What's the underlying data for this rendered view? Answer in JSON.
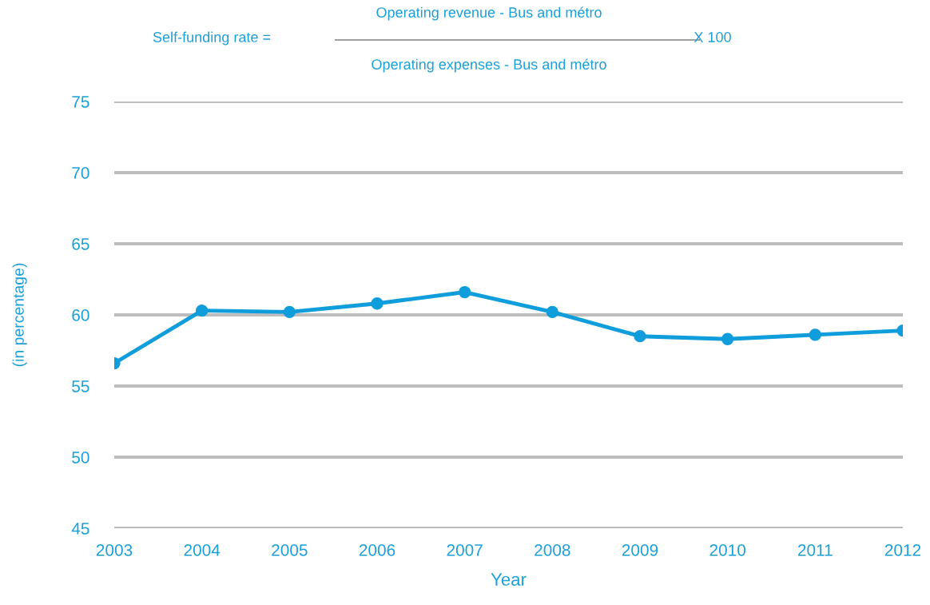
{
  "chart_data": {
    "type": "line",
    "annotations": [
      "Operating revenue - Bus and métro",
      "Self-funding rate =",
      "X 100",
      "Operating expenses - Bus and métro"
    ],
    "xlabel": "Year",
    "ylabel": "(in percentage)",
    "categories": [
      "2003",
      "2004",
      "2005",
      "2006",
      "2007",
      "2008",
      "2009",
      "2010",
      "2011",
      "2012"
    ],
    "series": [
      {
        "color": "#0f9ddb",
        "values": [
          56.6,
          60.3,
          60.2,
          60.8,
          61.6,
          60.2,
          58.5,
          58.3,
          58.6,
          58.9
        ]
      }
    ],
    "ylim": [
      45,
      75
    ],
    "yticks": [
      45,
      50,
      55,
      60,
      65,
      70,
      75
    ],
    "grid": "y",
    "marker": "circle",
    "line_style": "solid"
  }
}
